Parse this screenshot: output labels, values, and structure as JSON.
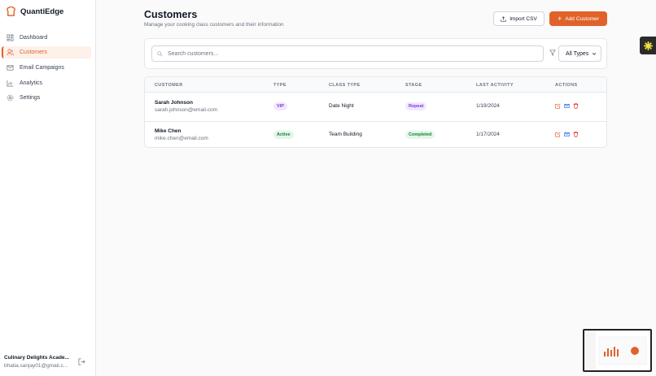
{
  "sidebar": {
    "brand": "QuantiEdge",
    "nav": [
      "Dashboard",
      "Customers",
      "Email Campaigns",
      "Analytics",
      "Settings"
    ],
    "account": {
      "name": "Culinary Delights Acade...",
      "email": "bhatia.sanjay01@gmail.c..."
    }
  },
  "header": {
    "title": "Customers",
    "subtitle": "Manage your cooking class customers and their information",
    "buttons": [
      "Import CSV",
      "Add Customer"
    ]
  },
  "filters": {
    "search_placeholder": "Search customers...",
    "type_select": "All Types"
  },
  "table": {
    "columns": [
      "CUSTOMER",
      "TYPE",
      "CLASS TYPE",
      "STAGE",
      "LAST ACTIVITY",
      "ACTIONS"
    ],
    "rows": [
      {
        "name": "Sarah Johnson",
        "email": "sarah.johnson@email.com",
        "type": "VIP",
        "class_type": "Date Night",
        "stage": "Repeat",
        "last_activity": "1/19/2024"
      },
      {
        "name": "Mike Chen",
        "email": "mike.chen@email.com",
        "type": "Active",
        "class_type": "Team Building",
        "stage": "Completed",
        "last_activity": "1/17/2024"
      }
    ]
  }
}
